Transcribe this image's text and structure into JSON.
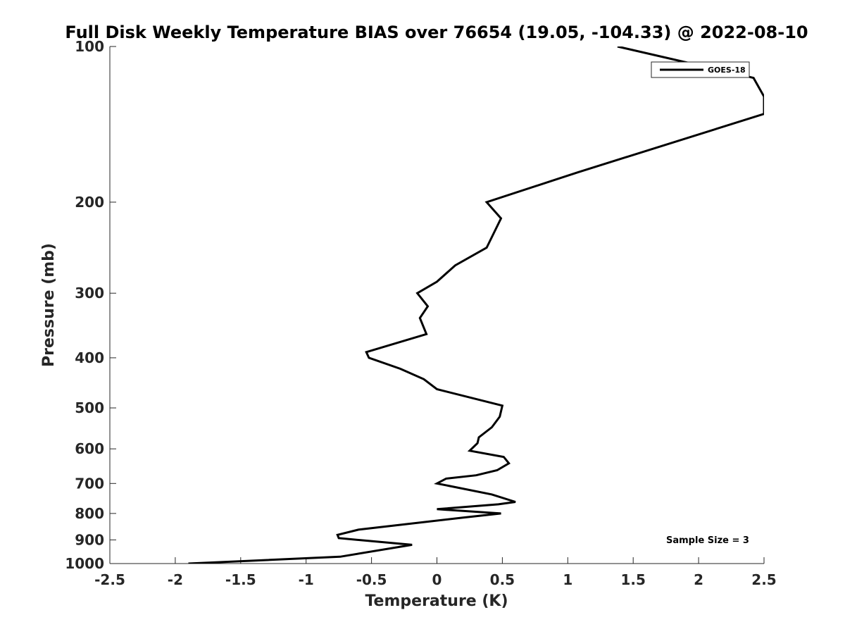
{
  "chart_data": {
    "type": "line",
    "title": "Full Disk Weekly Temperature BIAS over 76654 (19.05, -104.33) @ 2022-08-10",
    "xlabel": "Temperature (K)",
    "ylabel": "Pressure (mb)",
    "xlim": [
      -2.5,
      2.5
    ],
    "ylim": [
      1000,
      100
    ],
    "y_scale": "log",
    "y_reversed": true,
    "grid": false,
    "x_ticks": [
      -2.5,
      -2,
      -1.5,
      -1,
      -0.5,
      0,
      0.5,
      1,
      1.5,
      2,
      2.5
    ],
    "x_tick_labels": [
      "-2.5",
      "-2",
      "-1.5",
      "-1",
      "-0.5",
      "0",
      "0.5",
      "1",
      "1.5",
      "2",
      "2.5"
    ],
    "y_ticks": [
      100,
      200,
      300,
      400,
      500,
      600,
      700,
      800,
      900,
      1000
    ],
    "y_tick_labels": [
      "100",
      "200",
      "300",
      "400",
      "500",
      "600",
      "700",
      "800",
      "900",
      "1000"
    ],
    "legend_position": "top-right",
    "series": [
      {
        "name": "GOES-18",
        "color": "#000000",
        "x": [
          1.38,
          2.42,
          2.5,
          2.5,
          1.08,
          0.38,
          0.49,
          0.38,
          0.14,
          0.0,
          -0.15,
          -0.07,
          -0.13,
          -0.08,
          -0.54,
          -0.52,
          -0.28,
          -0.1,
          0.0,
          0.5,
          0.48,
          0.42,
          0.32,
          0.31,
          0.25,
          0.51,
          0.55,
          0.46,
          0.3,
          0.07,
          0.0,
          0.42,
          0.6,
          0.47,
          0.0,
          0.49,
          0.2,
          -0.6,
          -0.76,
          -0.75,
          -0.19,
          -0.74,
          -1.9
        ],
        "y": [
          100,
          115,
          125,
          135,
          175,
          200,
          215,
          245,
          265,
          285,
          300,
          318,
          335,
          360,
          390,
          400,
          420,
          440,
          460,
          495,
          520,
          545,
          570,
          585,
          605,
          622,
          640,
          660,
          675,
          685,
          700,
          735,
          760,
          768,
          785,
          800,
          815,
          860,
          880,
          893,
          920,
          970,
          1000
        ]
      }
    ],
    "annotations": [
      "Sample Size = 3"
    ]
  }
}
